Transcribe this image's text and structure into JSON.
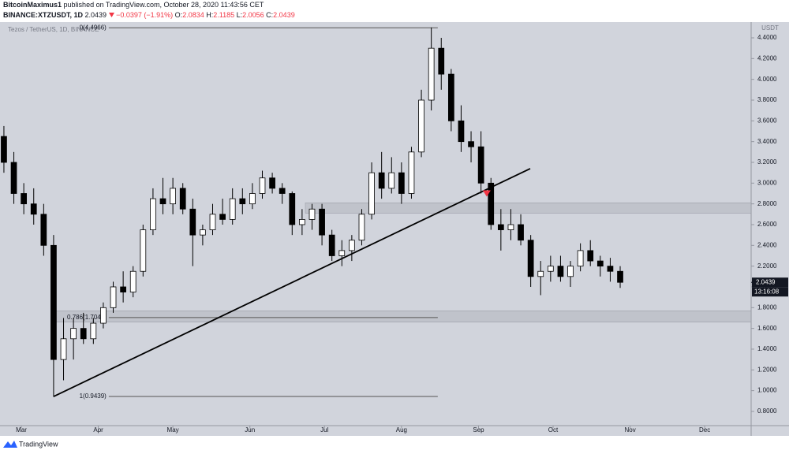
{
  "header": {
    "author": "BitcoinMaximus1",
    "published": "published on TradingView.com, October 28, 2020 11:43:56 CET",
    "symbol": "BINANCE:XTZUSDT, 1D",
    "last": "2.0439",
    "change": "−0.0397 (−1.91%)",
    "open_label": "O:",
    "open": "2.0834",
    "high_label": "H:",
    "high": "2.1185",
    "low_label": "L:",
    "low": "2.0056",
    "close_label": "C:",
    "close": "2.0439"
  },
  "chart_data": {
    "type": "candlestick",
    "title": "Tezos / TetherUS, 1D, BINANCE",
    "y_unit": "USDT",
    "up_color": "#ffffff",
    "down_color": "#000000",
    "grid": false,
    "xlim": [
      -8.57,
      293.7
    ],
    "ylim": [
      0.663,
      4.552
    ],
    "xticks": [
      {
        "value": 0,
        "label": "Mar"
      },
      {
        "value": 31,
        "label": "Apr"
      },
      {
        "value": 61,
        "label": "May"
      },
      {
        "value": 92,
        "label": "Jun"
      },
      {
        "value": 122,
        "label": "Jul"
      },
      {
        "value": 153,
        "label": "Aug"
      },
      {
        "value": 184,
        "label": "Sep"
      },
      {
        "value": 214,
        "label": "Oct"
      },
      {
        "value": 245,
        "label": "Nov"
      },
      {
        "value": 275,
        "label": "Dec"
      }
    ],
    "yticks": [
      {
        "value": 0.8,
        "label": "0.8000"
      },
      {
        "value": 1.0,
        "label": "1.0000"
      },
      {
        "value": 1.2,
        "label": "1.2000"
      },
      {
        "value": 1.4,
        "label": "1.4000"
      },
      {
        "value": 1.6,
        "label": "1.6000"
      },
      {
        "value": 1.8,
        "label": "1.8000"
      },
      {
        "value": 2.0,
        "label": "2.0000"
      },
      {
        "value": 2.2,
        "label": "2.2000"
      },
      {
        "value": 2.4,
        "label": "2.4000"
      },
      {
        "value": 2.6,
        "label": "2.6000"
      },
      {
        "value": 2.8,
        "label": "2.8000"
      },
      {
        "value": 3.0,
        "label": "3.0000"
      },
      {
        "value": 3.2,
        "label": "3.2000"
      },
      {
        "value": 3.4,
        "label": "3.4000"
      },
      {
        "value": 3.6,
        "label": "3.6000"
      },
      {
        "value": 3.8,
        "label": "3.8000"
      },
      {
        "value": 4.0,
        "label": "4.0000"
      },
      {
        "value": 4.2,
        "label": "4.2000"
      },
      {
        "value": 4.4,
        "label": "4.4000"
      }
    ],
    "candles": [
      {
        "x": -7,
        "open": 3.45,
        "high": 3.55,
        "low": 3.1,
        "close": 3.2
      },
      {
        "x": -3,
        "open": 3.2,
        "high": 3.3,
        "low": 2.8,
        "close": 2.9
      },
      {
        "x": 1,
        "open": 2.9,
        "high": 3.0,
        "low": 2.7,
        "close": 2.8
      },
      {
        "x": 5,
        "open": 2.8,
        "high": 2.95,
        "low": 2.6,
        "close": 2.7
      },
      {
        "x": 9,
        "open": 2.7,
        "high": 2.8,
        "low": 2.3,
        "close": 2.4
      },
      {
        "x": 13,
        "open": 2.4,
        "high": 2.5,
        "low": 0.94,
        "close": 1.3
      },
      {
        "x": 17,
        "open": 1.3,
        "high": 1.7,
        "low": 1.1,
        "close": 1.5
      },
      {
        "x": 21,
        "open": 1.5,
        "high": 1.7,
        "low": 1.3,
        "close": 1.6
      },
      {
        "x": 25,
        "open": 1.6,
        "high": 1.75,
        "low": 1.45,
        "close": 1.5
      },
      {
        "x": 29,
        "open": 1.5,
        "high": 1.7,
        "low": 1.45,
        "close": 1.65
      },
      {
        "x": 33,
        "open": 1.65,
        "high": 1.85,
        "low": 1.6,
        "close": 1.8
      },
      {
        "x": 37,
        "open": 1.8,
        "high": 2.05,
        "low": 1.75,
        "close": 2.0
      },
      {
        "x": 41,
        "open": 2.0,
        "high": 2.15,
        "low": 1.85,
        "close": 1.95
      },
      {
        "x": 45,
        "open": 1.95,
        "high": 2.2,
        "low": 1.9,
        "close": 2.15
      },
      {
        "x": 49,
        "open": 2.15,
        "high": 2.6,
        "low": 2.1,
        "close": 2.55
      },
      {
        "x": 53,
        "open": 2.55,
        "high": 2.95,
        "low": 2.5,
        "close": 2.85
      },
      {
        "x": 57,
        "open": 2.85,
        "high": 3.05,
        "low": 2.7,
        "close": 2.8
      },
      {
        "x": 61,
        "open": 2.8,
        "high": 3.05,
        "low": 2.7,
        "close": 2.95
      },
      {
        "x": 65,
        "open": 2.95,
        "high": 3.0,
        "low": 2.7,
        "close": 2.75
      },
      {
        "x": 69,
        "open": 2.75,
        "high": 2.85,
        "low": 2.2,
        "close": 2.5
      },
      {
        "x": 73,
        "open": 2.5,
        "high": 2.6,
        "low": 2.4,
        "close": 2.55
      },
      {
        "x": 77,
        "open": 2.55,
        "high": 2.8,
        "low": 2.5,
        "close": 2.7
      },
      {
        "x": 81,
        "open": 2.7,
        "high": 2.85,
        "low": 2.6,
        "close": 2.65
      },
      {
        "x": 85,
        "open": 2.65,
        "high": 2.95,
        "low": 2.6,
        "close": 2.85
      },
      {
        "x": 89,
        "open": 2.85,
        "high": 2.95,
        "low": 2.7,
        "close": 2.8
      },
      {
        "x": 93,
        "open": 2.8,
        "high": 3.0,
        "low": 2.75,
        "close": 2.9
      },
      {
        "x": 97,
        "open": 2.9,
        "high": 3.12,
        "low": 2.85,
        "close": 3.05
      },
      {
        "x": 101,
        "open": 3.05,
        "high": 3.1,
        "low": 2.9,
        "close": 2.95
      },
      {
        "x": 105,
        "open": 2.95,
        "high": 3.0,
        "low": 2.8,
        "close": 2.9
      },
      {
        "x": 109,
        "open": 2.9,
        "high": 2.92,
        "low": 2.5,
        "close": 2.6
      },
      {
        "x": 113,
        "open": 2.6,
        "high": 2.75,
        "low": 2.5,
        "close": 2.65
      },
      {
        "x": 117,
        "open": 2.65,
        "high": 2.8,
        "low": 2.55,
        "close": 2.75
      },
      {
        "x": 121,
        "open": 2.75,
        "high": 2.8,
        "low": 2.4,
        "close": 2.5
      },
      {
        "x": 125,
        "open": 2.5,
        "high": 2.55,
        "low": 2.25,
        "close": 2.3
      },
      {
        "x": 129,
        "open": 2.3,
        "high": 2.45,
        "low": 2.2,
        "close": 2.35
      },
      {
        "x": 133,
        "open": 2.35,
        "high": 2.5,
        "low": 2.25,
        "close": 2.45
      },
      {
        "x": 137,
        "open": 2.45,
        "high": 2.75,
        "low": 2.4,
        "close": 2.7
      },
      {
        "x": 141,
        "open": 2.7,
        "high": 3.2,
        "low": 2.65,
        "close": 3.1
      },
      {
        "x": 145,
        "open": 3.1,
        "high": 3.3,
        "low": 2.85,
        "close": 2.95
      },
      {
        "x": 149,
        "open": 2.95,
        "high": 3.25,
        "low": 2.9,
        "close": 3.1
      },
      {
        "x": 153,
        "open": 3.1,
        "high": 3.2,
        "low": 2.8,
        "close": 2.9
      },
      {
        "x": 157,
        "open": 2.9,
        "high": 3.35,
        "low": 2.85,
        "close": 3.3
      },
      {
        "x": 161,
        "open": 3.3,
        "high": 3.9,
        "low": 3.25,
        "close": 3.8
      },
      {
        "x": 165,
        "open": 3.8,
        "high": 4.5,
        "low": 3.7,
        "close": 4.3
      },
      {
        "x": 169,
        "open": 4.3,
        "high": 4.4,
        "low": 3.9,
        "close": 4.05
      },
      {
        "x": 173,
        "open": 4.05,
        "high": 4.1,
        "low": 3.5,
        "close": 3.6
      },
      {
        "x": 177,
        "open": 3.6,
        "high": 3.75,
        "low": 3.3,
        "close": 3.4
      },
      {
        "x": 181,
        "open": 3.4,
        "high": 3.5,
        "low": 3.2,
        "close": 3.35
      },
      {
        "x": 185,
        "open": 3.35,
        "high": 3.5,
        "low": 2.9,
        "close": 3.0
      },
      {
        "x": 189,
        "open": 3.0,
        "high": 3.05,
        "low": 2.55,
        "close": 2.6
      },
      {
        "x": 193,
        "open": 2.6,
        "high": 2.75,
        "low": 2.35,
        "close": 2.55
      },
      {
        "x": 197,
        "open": 2.55,
        "high": 2.75,
        "low": 2.45,
        "close": 2.6
      },
      {
        "x": 201,
        "open": 2.6,
        "high": 2.7,
        "low": 2.4,
        "close": 2.45
      },
      {
        "x": 205,
        "open": 2.45,
        "high": 2.5,
        "low": 2.0,
        "close": 2.1
      },
      {
        "x": 209,
        "open": 2.1,
        "high": 2.25,
        "low": 1.92,
        "close": 2.15
      },
      {
        "x": 213,
        "open": 2.15,
        "high": 2.3,
        "low": 2.05,
        "close": 2.2
      },
      {
        "x": 217,
        "open": 2.2,
        "high": 2.3,
        "low": 2.05,
        "close": 2.1
      },
      {
        "x": 221,
        "open": 2.1,
        "high": 2.25,
        "low": 2.0,
        "close": 2.2
      },
      {
        "x": 225,
        "open": 2.2,
        "high": 2.42,
        "low": 2.15,
        "close": 2.35
      },
      {
        "x": 229,
        "open": 2.35,
        "high": 2.45,
        "low": 2.2,
        "close": 2.25
      },
      {
        "x": 233,
        "open": 2.25,
        "high": 2.3,
        "low": 2.1,
        "close": 2.2
      },
      {
        "x": 237,
        "open": 2.2,
        "high": 2.28,
        "low": 2.05,
        "close": 2.15
      },
      {
        "x": 241,
        "open": 2.15,
        "high": 2.2,
        "low": 1.99,
        "close": 2.0439
      }
    ],
    "last_price": 2.0439,
    "countdown": "13:16:08",
    "fib_levels": [
      {
        "level_label": "0(4.4966)",
        "value": 4.4966,
        "start": 35.2,
        "end": 167.6
      },
      {
        "level_label": "0.786(1.7041)",
        "value": 1.7041,
        "start": 35.2,
        "end": 167.6
      },
      {
        "level_label": "1(0.9439)",
        "value": 0.9439,
        "start": 35.2,
        "end": 167.6
      }
    ],
    "zones": [
      {
        "low": 2.71,
        "high": 2.81,
        "start": 114.3
      },
      {
        "low": 1.66,
        "high": 1.77,
        "start": 12.7
      }
    ],
    "trendline": {
      "x": [
        13,
        204.8
      ],
      "y": [
        0.9439,
        3.14
      ]
    },
    "marker": {
      "x": 187.3,
      "y": 2.9,
      "color": "#f23645"
    }
  },
  "footer": {
    "brand": "TradingView"
  }
}
